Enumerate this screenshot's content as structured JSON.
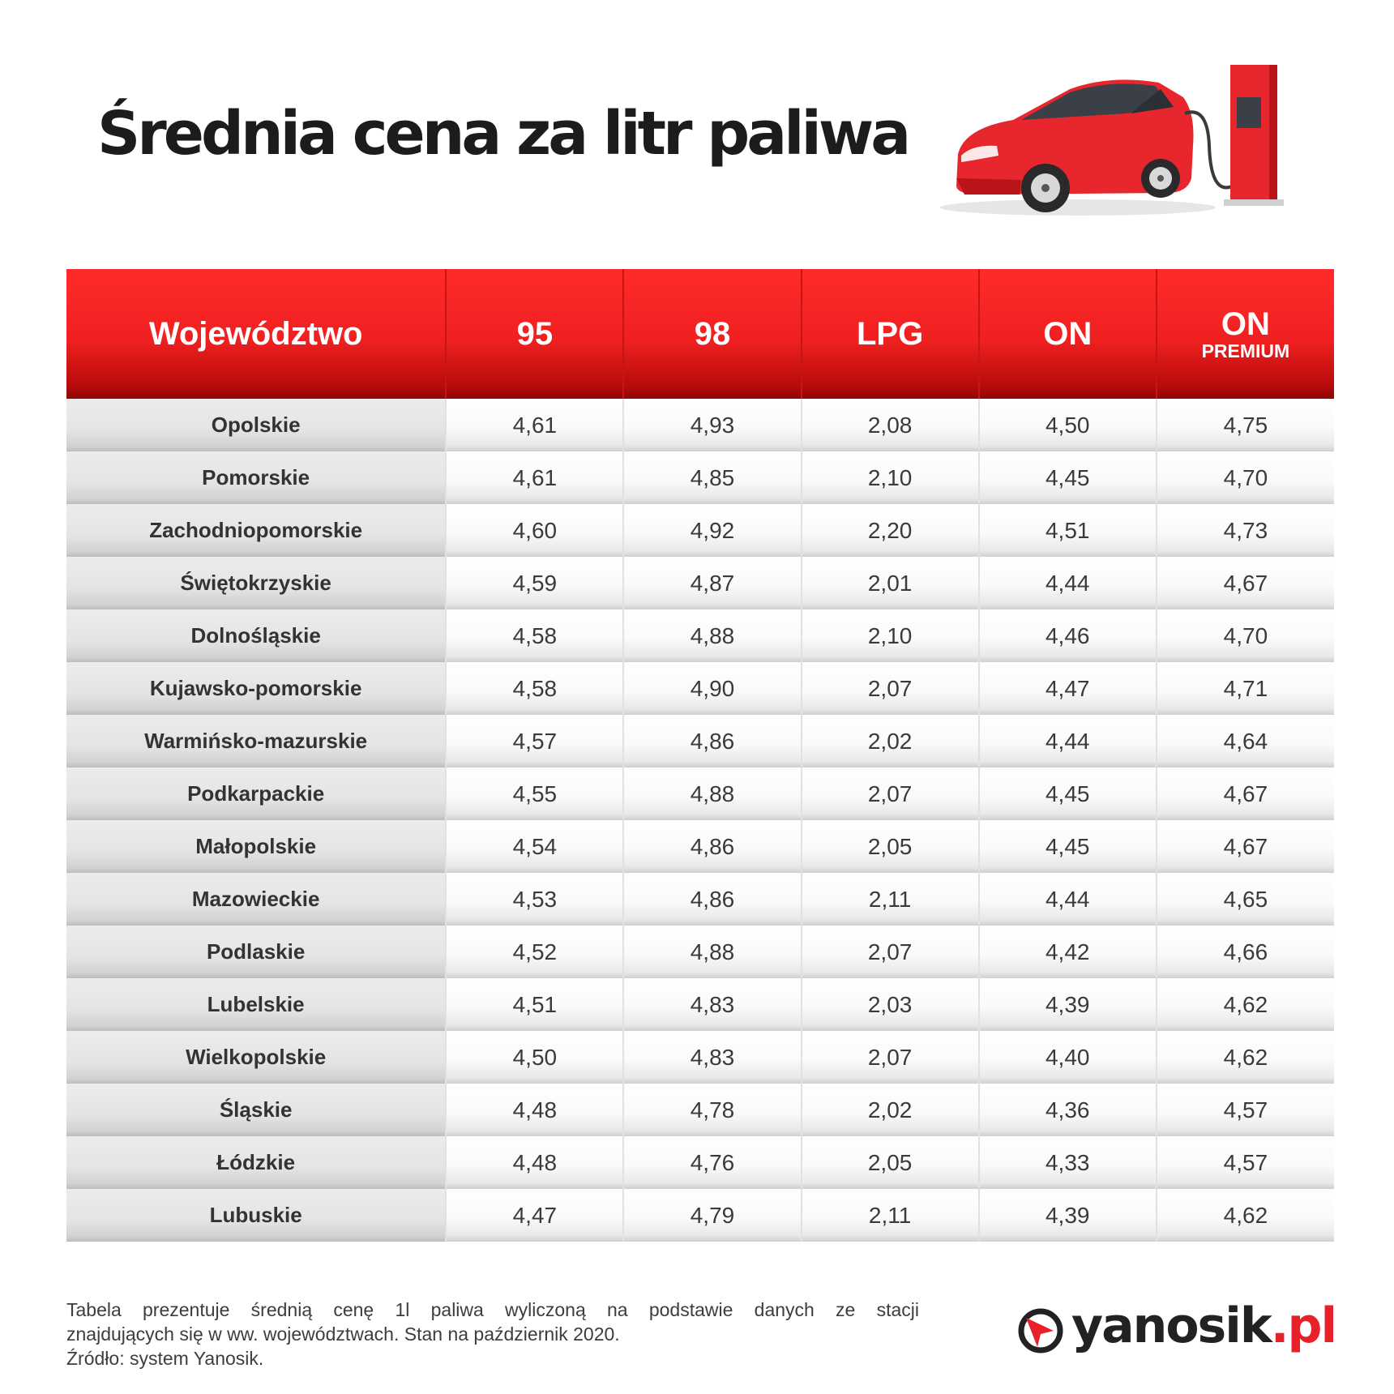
{
  "title": "Średnia cena za litr paliwa",
  "table": {
    "headers": {
      "region": "Województwo",
      "c95": "95",
      "c98": "98",
      "lpg": "LPG",
      "on": "ON",
      "on_premium_main": "ON",
      "on_premium_sub": "PREMIUM"
    },
    "rows": [
      [
        "Opolskie",
        "4,61",
        "4,93",
        "2,08",
        "4,50",
        "4,75"
      ],
      [
        "Pomorskie",
        "4,61",
        "4,85",
        "2,10",
        "4,45",
        "4,70"
      ],
      [
        "Zachodniopomorskie",
        "4,60",
        "4,92",
        "2,20",
        "4,51",
        "4,73"
      ],
      [
        "Świętokrzyskie",
        "4,59",
        "4,87",
        "2,01",
        "4,44",
        "4,67"
      ],
      [
        "Dolnośląskie",
        "4,58",
        "4,88",
        "2,10",
        "4,46",
        "4,70"
      ],
      [
        "Kujawsko-pomorskie",
        "4,58",
        "4,90",
        "2,07",
        "4,47",
        "4,71"
      ],
      [
        "Warmińsko-mazurskie",
        "4,57",
        "4,86",
        "2,02",
        "4,44",
        "4,64"
      ],
      [
        "Podkarpackie",
        "4,55",
        "4,88",
        "2,07",
        "4,45",
        "4,67"
      ],
      [
        "Małopolskie",
        "4,54",
        "4,86",
        "2,05",
        "4,45",
        "4,67"
      ],
      [
        "Mazowieckie",
        "4,53",
        "4,86",
        "2,11",
        "4,44",
        "4,65"
      ],
      [
        "Podlaskie",
        "4,52",
        "4,88",
        "2,07",
        "4,42",
        "4,66"
      ],
      [
        "Lubelskie",
        "4,51",
        "4,83",
        "2,03",
        "4,39",
        "4,62"
      ],
      [
        "Wielkopolskie",
        "4,50",
        "4,83",
        "2,07",
        "4,40",
        "4,62"
      ],
      [
        "Śląskie",
        "4,48",
        "4,78",
        "2,02",
        "4,36",
        "4,57"
      ],
      [
        "Łódzkie",
        "4,48",
        "4,76",
        "2,05",
        "4,33",
        "4,57"
      ],
      [
        "Lubuskie",
        "4,47",
        "4,79",
        "2,11",
        "4,39",
        "4,62"
      ]
    ]
  },
  "footnote": {
    "line1": "Tabela prezentuje średnią cenę 1l paliwa wyliczoną na podstawie danych ze stacji",
    "line2": "znajdujących się w ww. województwach. Stan na październik 2020.",
    "line3": "Źródło: system Yanosik."
  },
  "logo": {
    "name": "yanosik",
    "tld": ".pl"
  },
  "colors": {
    "accent_red": "#e8202a",
    "header_red": "#f02020",
    "text_dark": "#1c1c1c"
  },
  "icons": [
    "red-electric-car-icon",
    "charging-station-icon",
    "yanosik-logo-icon"
  ]
}
